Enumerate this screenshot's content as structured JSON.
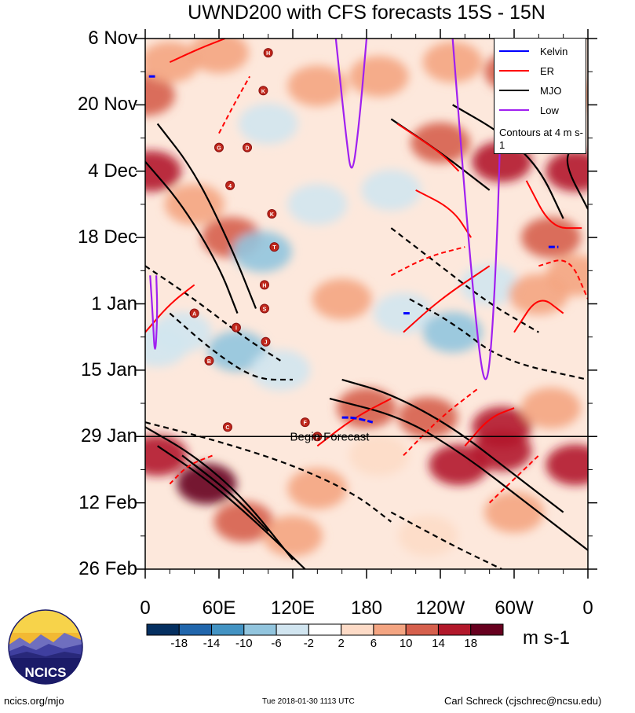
{
  "chart_data": {
    "type": "heatmap",
    "title": "UWND200 with CFS forecasts  15S - 15N",
    "x_tick_labels": [
      "0",
      "60E",
      "120E",
      "180",
      "120W",
      "60W",
      "0"
    ],
    "x_range_deg_east": [
      0,
      360
    ],
    "y_tick_labels": [
      "6 Nov",
      "20 Nov",
      "4 Dec",
      "18 Dec",
      "1 Jan",
      "15 Jan",
      "29 Jan",
      "12 Feb",
      "26 Feb"
    ],
    "y_range_days_since_6_nov": [
      0,
      112
    ],
    "forecast_start": {
      "day": 84,
      "label": "Begin Forecast"
    },
    "units": "m s-1",
    "colorbar": {
      "ticks": [
        "-18",
        "-14",
        "-10",
        "-6",
        "-2",
        "2",
        "6",
        "10",
        "14",
        "18"
      ],
      "colors": [
        "#053061",
        "#2166ac",
        "#4393c3",
        "#92c5de",
        "#d1e5f0",
        "#ffffff",
        "#fddbc7",
        "#f4a582",
        "#d6604d",
        "#b2182b",
        "#67001f"
      ]
    },
    "legend": {
      "entries": [
        {
          "name": "Kelvin",
          "color": "#0000ff"
        },
        {
          "name": "ER",
          "color": "#ff0000"
        },
        {
          "name": "MJO",
          "color": "#000000"
        },
        {
          "name": "Low",
          "color": "#a020f0"
        }
      ],
      "note": "Contours at 4 m s-1"
    },
    "anomaly_blobs": [
      {
        "lon": 0,
        "day": 12,
        "value": 10
      },
      {
        "lon": 20,
        "day": 5,
        "value": 8
      },
      {
        "lon": 60,
        "day": 3,
        "value": 6
      },
      {
        "lon": 100,
        "day": 18,
        "value": -6
      },
      {
        "lon": 140,
        "day": 10,
        "value": 6
      },
      {
        "lon": 190,
        "day": 8,
        "value": 6
      },
      {
        "lon": 250,
        "day": 5,
        "value": 8
      },
      {
        "lon": 300,
        "day": 7,
        "value": 12
      },
      {
        "lon": 340,
        "day": 12,
        "value": 8
      },
      {
        "lon": 5,
        "day": 28,
        "value": 14
      },
      {
        "lon": 40,
        "day": 35,
        "value": 8
      },
      {
        "lon": 70,
        "day": 42,
        "value": 10
      },
      {
        "lon": 95,
        "day": 45,
        "value": -8
      },
      {
        "lon": 140,
        "day": 35,
        "value": -6
      },
      {
        "lon": 200,
        "day": 32,
        "value": -4
      },
      {
        "lon": 240,
        "day": 22,
        "value": 12
      },
      {
        "lon": 290,
        "day": 26,
        "value": 14
      },
      {
        "lon": 350,
        "day": 28,
        "value": 14
      },
      {
        "lon": 330,
        "day": 42,
        "value": 10
      },
      {
        "lon": 30,
        "day": 62,
        "value": -6
      },
      {
        "lon": 75,
        "day": 66,
        "value": -10
      },
      {
        "lon": 110,
        "day": 70,
        "value": -6
      },
      {
        "lon": 160,
        "day": 55,
        "value": 6
      },
      {
        "lon": 210,
        "day": 58,
        "value": -4
      },
      {
        "lon": 250,
        "day": 62,
        "value": -10
      },
      {
        "lon": 280,
        "day": 52,
        "value": -6
      },
      {
        "lon": 320,
        "day": 54,
        "value": 6
      },
      {
        "lon": 350,
        "day": 50,
        "value": 8
      },
      {
        "lon": 10,
        "day": 65,
        "value": -6
      },
      {
        "lon": 180,
        "day": 78,
        "value": 12
      },
      {
        "lon": 230,
        "day": 80,
        "value": 12
      },
      {
        "lon": 290,
        "day": 82,
        "value": 14
      },
      {
        "lon": 330,
        "day": 78,
        "value": 8
      },
      {
        "lon": 10,
        "day": 88,
        "value": 14
      },
      {
        "lon": 50,
        "day": 94,
        "value": 18
      },
      {
        "lon": 80,
        "day": 102,
        "value": 12
      },
      {
        "lon": 140,
        "day": 95,
        "value": 6
      },
      {
        "lon": 190,
        "day": 88,
        "value": 4
      },
      {
        "lon": 255,
        "day": 90,
        "value": 16
      },
      {
        "lon": 290,
        "day": 87,
        "value": 16
      },
      {
        "lon": 350,
        "day": 90,
        "value": 14
      },
      {
        "lon": 230,
        "day": 105,
        "value": 4
      },
      {
        "lon": 300,
        "day": 100,
        "value": 8
      },
      {
        "lon": 120,
        "day": 105,
        "value": 6
      }
    ],
    "mjo_contours": [
      {
        "style": "solid",
        "points": [
          [
            0,
            26
          ],
          [
            30,
            35
          ],
          [
            60,
            48
          ],
          [
            75,
            58
          ]
        ]
      },
      {
        "style": "solid",
        "points": [
          [
            10,
            18
          ],
          [
            40,
            28
          ],
          [
            70,
            44
          ],
          [
            90,
            57
          ]
        ]
      },
      {
        "style": "solid",
        "points": [
          [
            200,
            17
          ],
          [
            240,
            24
          ],
          [
            280,
            32
          ]
        ]
      },
      {
        "style": "solid",
        "points": [
          [
            250,
            14
          ],
          [
            290,
            20
          ],
          [
            320,
            27
          ],
          [
            340,
            38
          ]
        ]
      },
      {
        "style": "solid",
        "points": [
          [
            350,
            22
          ],
          [
            340,
            26
          ],
          [
            360,
            36
          ]
        ]
      },
      {
        "style": "dashed",
        "points": [
          [
            0,
            48
          ],
          [
            40,
            55
          ],
          [
            80,
            63
          ],
          [
            110,
            68
          ]
        ]
      },
      {
        "style": "dashed",
        "points": [
          [
            20,
            58
          ],
          [
            55,
            66
          ],
          [
            90,
            72
          ],
          [
            120,
            72
          ]
        ]
      },
      {
        "style": "dashed",
        "points": [
          [
            200,
            40
          ],
          [
            240,
            48
          ],
          [
            280,
            56
          ],
          [
            320,
            62
          ]
        ]
      },
      {
        "style": "dashed",
        "points": [
          [
            215,
            55
          ],
          [
            250,
            60
          ],
          [
            290,
            68
          ],
          [
            360,
            72
          ]
        ]
      },
      {
        "style": "dashed",
        "points": [
          [
            0,
            81
          ],
          [
            60,
            85
          ],
          [
            120,
            90
          ],
          [
            170,
            96
          ],
          [
            200,
            102
          ]
        ]
      },
      {
        "style": "solid",
        "points": [
          [
            160,
            72
          ],
          [
            200,
            75
          ],
          [
            250,
            82
          ],
          [
            300,
            92
          ],
          [
            340,
            100
          ]
        ]
      },
      {
        "style": "solid",
        "points": [
          [
            150,
            76
          ],
          [
            210,
            80
          ],
          [
            260,
            88
          ],
          [
            310,
            98
          ],
          [
            360,
            108
          ]
        ]
      },
      {
        "style": "solid",
        "points": [
          [
            0,
            82
          ],
          [
            40,
            88
          ],
          [
            80,
            97
          ],
          [
            120,
            110
          ]
        ]
      },
      {
        "style": "solid",
        "points": [
          [
            10,
            86
          ],
          [
            50,
            93
          ],
          [
            90,
            102
          ],
          [
            130,
            112
          ]
        ]
      },
      {
        "style": "solid",
        "points": [
          [
            30,
            88
          ],
          [
            70,
            96
          ],
          [
            100,
            104
          ]
        ]
      },
      {
        "style": "solid",
        "points": [
          [
            40,
            90
          ],
          [
            65,
            95
          ],
          [
            85,
            100
          ]
        ]
      },
      {
        "style": "dashed",
        "points": [
          [
            200,
            100
          ],
          [
            250,
            107
          ],
          [
            290,
            112
          ]
        ]
      }
    ],
    "er_contours": [
      {
        "style": "solid",
        "points": [
          [
            20,
            5
          ],
          [
            45,
            2
          ],
          [
            65,
            0
          ]
        ]
      },
      {
        "style": "dashed",
        "points": [
          [
            60,
            20
          ],
          [
            72,
            14
          ],
          [
            85,
            8
          ]
        ]
      },
      {
        "style": "solid",
        "points": [
          [
            205,
            18
          ],
          [
            240,
            24
          ],
          [
            255,
            28
          ]
        ]
      },
      {
        "style": "solid",
        "points": [
          [
            220,
            32
          ],
          [
            250,
            36
          ],
          [
            265,
            42
          ]
        ]
      },
      {
        "style": "solid",
        "points": [
          [
            285,
            22
          ],
          [
            300,
            18
          ],
          [
            320,
            12
          ]
        ]
      },
      {
        "style": "solid",
        "points": [
          [
            310,
            30
          ],
          [
            330,
            40
          ],
          [
            355,
            40
          ]
        ]
      },
      {
        "style": "solid",
        "points": [
          [
            0,
            62
          ],
          [
            20,
            56
          ],
          [
            40,
            52
          ]
        ]
      },
      {
        "style": "solid",
        "points": [
          [
            210,
            62
          ],
          [
            240,
            55
          ],
          [
            280,
            48
          ]
        ]
      },
      {
        "style": "dashed",
        "points": [
          [
            200,
            50
          ],
          [
            230,
            46
          ],
          [
            260,
            44
          ]
        ]
      },
      {
        "style": "solid",
        "points": [
          [
            300,
            62
          ],
          [
            320,
            54
          ],
          [
            340,
            58
          ]
        ]
      },
      {
        "style": "dashed",
        "points": [
          [
            320,
            48
          ],
          [
            345,
            46
          ],
          [
            360,
            55
          ]
        ]
      },
      {
        "style": "solid",
        "points": [
          [
            140,
            86
          ],
          [
            170,
            80
          ],
          [
            200,
            76
          ]
        ]
      },
      {
        "style": "dashed",
        "points": [
          [
            210,
            88
          ],
          [
            240,
            80
          ],
          [
            270,
            74
          ]
        ]
      },
      {
        "style": "solid",
        "points": [
          [
            260,
            86
          ],
          [
            280,
            80
          ],
          [
            300,
            78
          ]
        ]
      },
      {
        "style": "dashed",
        "points": [
          [
            280,
            98
          ],
          [
            300,
            93
          ],
          [
            320,
            88
          ]
        ]
      },
      {
        "style": "dashed",
        "points": [
          [
            20,
            94
          ],
          [
            35,
            90
          ],
          [
            55,
            88
          ]
        ]
      }
    ],
    "kelvin_contours": [
      {
        "points": [
          [
            3,
            8
          ],
          [
            8,
            8
          ]
        ]
      },
      {
        "points": [
          [
            328,
            44
          ],
          [
            336,
            44
          ]
        ]
      },
      {
        "points": [
          [
            160,
            80
          ],
          [
            170,
            80
          ],
          [
            185,
            81
          ]
        ]
      },
      {
        "points": [
          [
            210,
            58
          ],
          [
            215,
            58
          ]
        ]
      }
    ],
    "low_contours": [
      {
        "points": [
          [
            155,
            0
          ],
          [
            163,
            20
          ],
          [
            168,
            30
          ],
          [
            174,
            18
          ],
          [
            180,
            0
          ]
        ]
      },
      {
        "points": [
          [
            250,
            0
          ],
          [
            262,
            40
          ],
          [
            272,
            68
          ],
          [
            278,
            74
          ],
          [
            283,
            60
          ],
          [
            288,
            30
          ],
          [
            290,
            0
          ]
        ]
      },
      {
        "points": [
          [
            4,
            50
          ],
          [
            6,
            58
          ],
          [
            8,
            68
          ],
          [
            10,
            58
          ],
          [
            9,
            50
          ]
        ]
      }
    ],
    "tc_tracks": [
      {
        "symbol": "H",
        "lon": 100,
        "day": 3
      },
      {
        "symbol": "K",
        "lon": 96,
        "day": 11
      },
      {
        "symbol": "G",
        "lon": 60,
        "day": 23
      },
      {
        "symbol": "D",
        "lon": 83,
        "day": 23
      },
      {
        "symbol": "4",
        "lon": 69,
        "day": 31
      },
      {
        "symbol": "K",
        "lon": 103,
        "day": 37
      },
      {
        "symbol": "T",
        "lon": 105,
        "day": 44
      },
      {
        "symbol": "H",
        "lon": 97,
        "day": 52
      },
      {
        "symbol": "S",
        "lon": 97,
        "day": 57
      },
      {
        "symbol": "A",
        "lon": 40,
        "day": 58
      },
      {
        "symbol": "I",
        "lon": 74,
        "day": 61
      },
      {
        "symbol": "J",
        "lon": 98,
        "day": 64
      },
      {
        "symbol": "B",
        "lon": 52,
        "day": 68
      },
      {
        "symbol": "C",
        "lon": 67,
        "day": 82
      },
      {
        "symbol": "F",
        "lon": 130,
        "day": 81
      },
      {
        "symbol": "F",
        "lon": 140,
        "day": 84
      }
    ]
  },
  "logo": {
    "text": "NCICS"
  },
  "footer": {
    "left": "ncics.org/mjo",
    "middle": "Tue 2018-01-30 1113 UTC",
    "right": "Carl Schreck (cjschrec@ncsu.edu)"
  }
}
